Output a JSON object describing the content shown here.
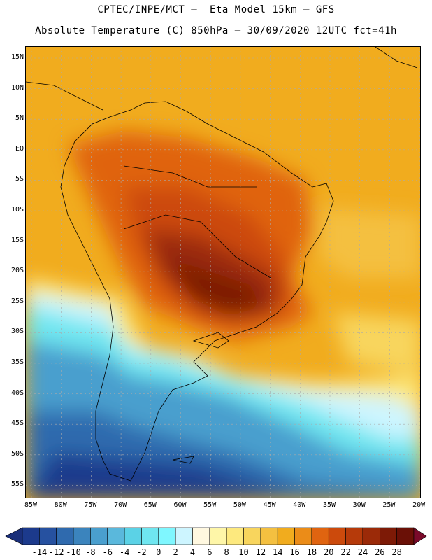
{
  "header": {
    "line1": "CPTEC/INPE/MCT –  Eta Model 15km – GFS",
    "line2": "Absolute Temperature (C) 850hPa – 30/09/2020 12UTC fct=41h"
  },
  "map": {
    "lat_labels": [
      "15N",
      "10N",
      "5N",
      "EQ",
      "5S",
      "10S",
      "15S",
      "20S",
      "25S",
      "30S",
      "35S",
      "40S",
      "45S",
      "50S",
      "55S"
    ],
    "lon_labels": [
      "85W",
      "80W",
      "75W",
      "70W",
      "65W",
      "60W",
      "55W",
      "50W",
      "45W",
      "40W",
      "35W",
      "30W",
      "25W",
      "20W"
    ]
  },
  "colorbar": {
    "labels": [
      "-14",
      "-12",
      "-10",
      "-8",
      "-6",
      "-4",
      "-2",
      "0",
      "2",
      "4",
      "6",
      "8",
      "10",
      "12",
      "14",
      "16",
      "18",
      "20",
      "22",
      "24",
      "26",
      "28"
    ],
    "colors": [
      "#1c3a8c",
      "#2651a0",
      "#2f6aae",
      "#3b84bd",
      "#4a9fce",
      "#5ab8dc",
      "#5bd2e6",
      "#6fe6f0",
      "#7ff7ff",
      "#cdf5ff",
      "#fff8e0",
      "#fef6a8",
      "#fde97e",
      "#f8d55d",
      "#f4c040",
      "#f1ac1e",
      "#eb8c18",
      "#e06410",
      "#cc4a0c",
      "#b63a0a",
      "#9b2a08",
      "#7d1a06",
      "#6a1006"
    ]
  }
}
